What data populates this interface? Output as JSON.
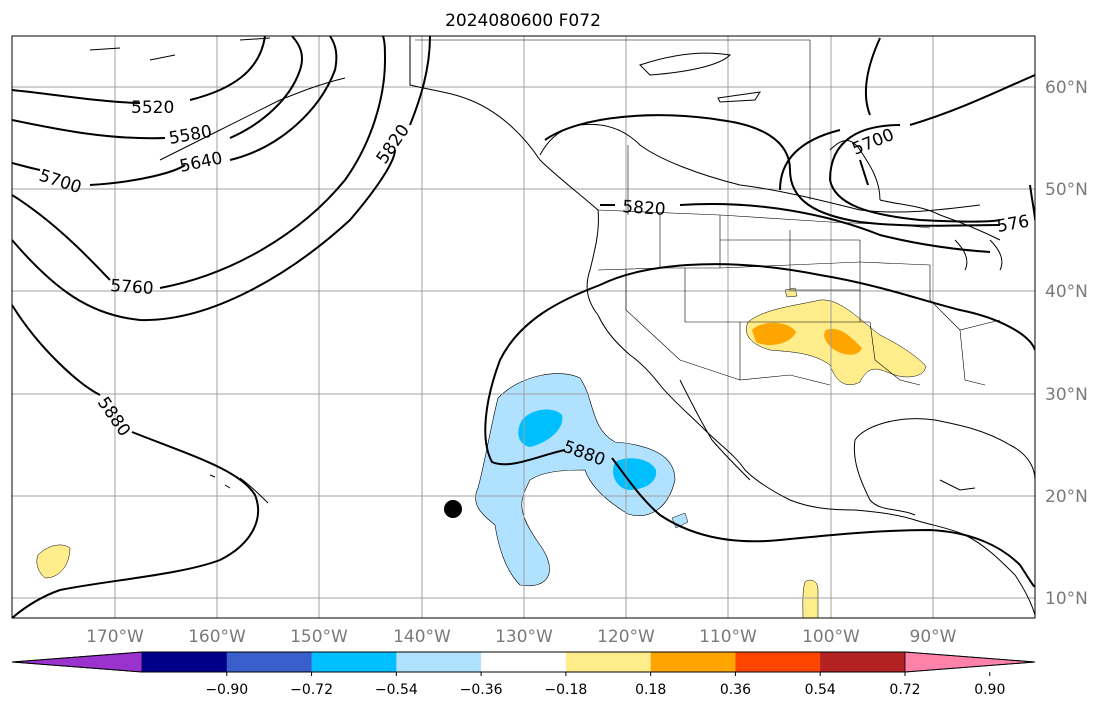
{
  "title": "2024080600 F072",
  "lat_labels": [
    "60°N",
    "50°N",
    "40°N",
    "30°N",
    "20°N",
    "10°N"
  ],
  "lon_labels": [
    "170°W",
    "160°W",
    "150°W",
    "140°W",
    "130°W",
    "120°W",
    "110°W",
    "100°W",
    "90°W"
  ],
  "contour_labels": [
    "5520",
    "5580",
    "5640",
    "5700",
    "5820",
    "5760",
    "5880",
    "5820",
    "5700",
    "576",
    "5880"
  ],
  "colorbar": {
    "tick_labels": [
      "−0.90",
      "−0.72",
      "−0.54",
      "−0.36",
      "−0.18",
      "0.18",
      "0.36",
      "0.54",
      "0.72",
      "0.90"
    ],
    "colors": [
      "#9a32cd",
      "#00008b",
      "#3a5fcd",
      "#00bfff",
      "#b0e2ff",
      "#ffffff",
      "#ffec8b",
      "#ffa500",
      "#ff4500",
      "#b22222",
      "#ff82ab"
    ]
  },
  "contour_color": "#000000",
  "grid_color": "#a0a0a0",
  "marker_color": "#000000"
}
